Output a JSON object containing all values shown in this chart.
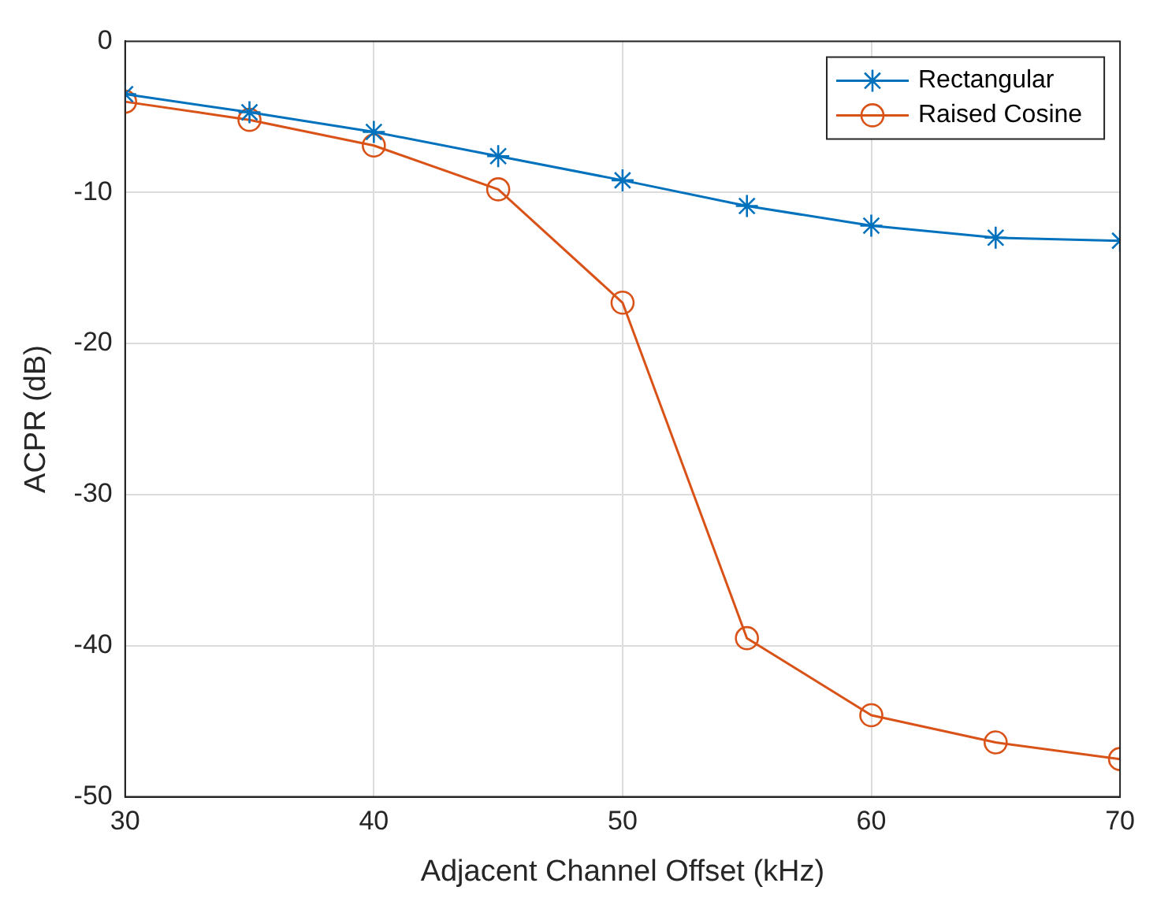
{
  "chart_data": {
    "type": "line",
    "xlabel": "Adjacent Channel Offset (kHz)",
    "ylabel": "ACPR (dB)",
    "x": [
      30,
      35,
      40,
      45,
      50,
      55,
      60,
      65,
      70
    ],
    "series": [
      {
        "name": "Rectangular",
        "color": "#0072bd",
        "marker": "cross",
        "values": [
          -3.5,
          -4.7,
          -6.0,
          -7.6,
          -9.2,
          -10.9,
          -12.2,
          -13.0,
          -13.2
        ]
      },
      {
        "name": "Raised Cosine",
        "color": "#d95319",
        "marker": "circle",
        "values": [
          -4.0,
          -5.2,
          -6.9,
          -9.8,
          -17.3,
          -39.5,
          -44.6,
          -46.4,
          -47.5
        ]
      }
    ],
    "xlim": [
      30,
      70
    ],
    "xticks": [
      30,
      40,
      50,
      60,
      70
    ],
    "ylim": [
      -50,
      0
    ],
    "yticks": [
      -50,
      -40,
      -30,
      -20,
      -10,
      0
    ],
    "grid": true,
    "legend": "top right",
    "line_style": "solid"
  }
}
